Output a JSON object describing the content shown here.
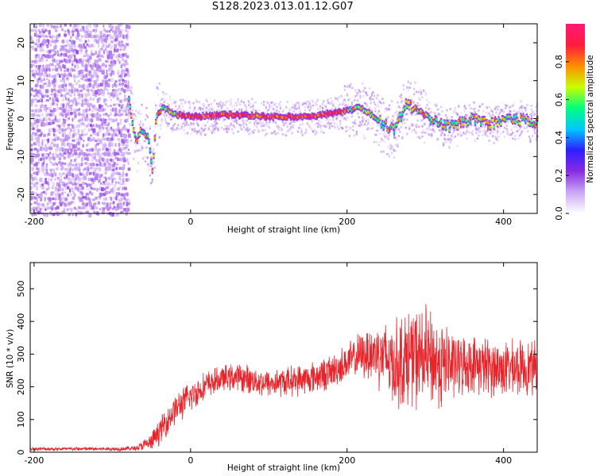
{
  "title": "S128.2023.013.01.12.G07",
  "chart_data": [
    {
      "id": "spectrogram",
      "type": "heatmap",
      "xlabel": "Height of straight line (km)",
      "ylabel": "Frequency (Hz)",
      "xlim": [
        -205,
        443
      ],
      "ylim": [
        -25,
        25
      ],
      "xticks": [
        -200,
        0,
        200,
        400
      ],
      "yticks": [
        -20,
        -10,
        0,
        10,
        20
      ],
      "colorbar": {
        "label": "Normalized spectral amplitude",
        "range": [
          0,
          1
        ],
        "ticks": [
          0.0,
          0.2,
          0.4,
          0.6,
          0.8
        ],
        "colors": [
          "#ffffff",
          "#c9a8f5",
          "#8a2be2",
          "#2d1eff",
          "#00c8ff",
          "#00ff7f",
          "#c8ff00",
          "#ff8c00",
          "#ff1a3c",
          "#ff1a7a"
        ]
      },
      "noise_region": {
        "x_range": [
          -205,
          -80
        ],
        "f_range": [
          -25,
          25
        ]
      },
      "ridge": [
        {
          "x": -80,
          "f": 5
        },
        {
          "x": -75,
          "f": -2
        },
        {
          "x": -70,
          "f": -6
        },
        {
          "x": -65,
          "f": -3
        },
        {
          "x": -55,
          "f": -5
        },
        {
          "x": -50,
          "f": -14
        },
        {
          "x": -45,
          "f": 1
        },
        {
          "x": -35,
          "f": 3
        },
        {
          "x": -20,
          "f": 1
        },
        {
          "x": 0,
          "f": 0.5
        },
        {
          "x": 50,
          "f": 1
        },
        {
          "x": 100,
          "f": 0.5
        },
        {
          "x": 150,
          "f": 0.5
        },
        {
          "x": 200,
          "f": 2
        },
        {
          "x": 215,
          "f": 3
        },
        {
          "x": 230,
          "f": 1
        },
        {
          "x": 250,
          "f": -2
        },
        {
          "x": 260,
          "f": -3
        },
        {
          "x": 275,
          "f": 4
        },
        {
          "x": 300,
          "f": 0
        },
        {
          "x": 330,
          "f": -2
        },
        {
          "x": 360,
          "f": 0
        },
        {
          "x": 380,
          "f": -1.5
        },
        {
          "x": 410,
          "f": 0
        },
        {
          "x": 443,
          "f": -1
        }
      ]
    },
    {
      "id": "snr",
      "type": "line",
      "xlabel": "Height of straight line (km)",
      "ylabel": "SNR (10 * v/v)",
      "xlim": [
        -205,
        443
      ],
      "ylim": [
        0,
        580
      ],
      "xticks": [
        -200,
        0,
        200,
        400
      ],
      "yticks": [
        0,
        100,
        200,
        300,
        400,
        500
      ],
      "color": "#e8242a",
      "envelope": {
        "x": [
          -205,
          -150,
          -100,
          -70,
          -50,
          -35,
          -20,
          0,
          20,
          40,
          60,
          100,
          150,
          180,
          200,
          220,
          240,
          260,
          280,
          300,
          320,
          340,
          360,
          380,
          400,
          443
        ],
        "mean": [
          10,
          10,
          10,
          12,
          30,
          80,
          130,
          170,
          205,
          225,
          230,
          210,
          225,
          245,
          275,
          300,
          305,
          270,
          290,
          290,
          270,
          265,
          270,
          260,
          255,
          260
        ],
        "spread": [
          6,
          6,
          6,
          8,
          30,
          45,
          50,
          50,
          45,
          40,
          45,
          45,
          50,
          55,
          60,
          75,
          110,
          140,
          160,
          160,
          145,
          100,
          90,
          95,
          90,
          85
        ]
      }
    }
  ]
}
